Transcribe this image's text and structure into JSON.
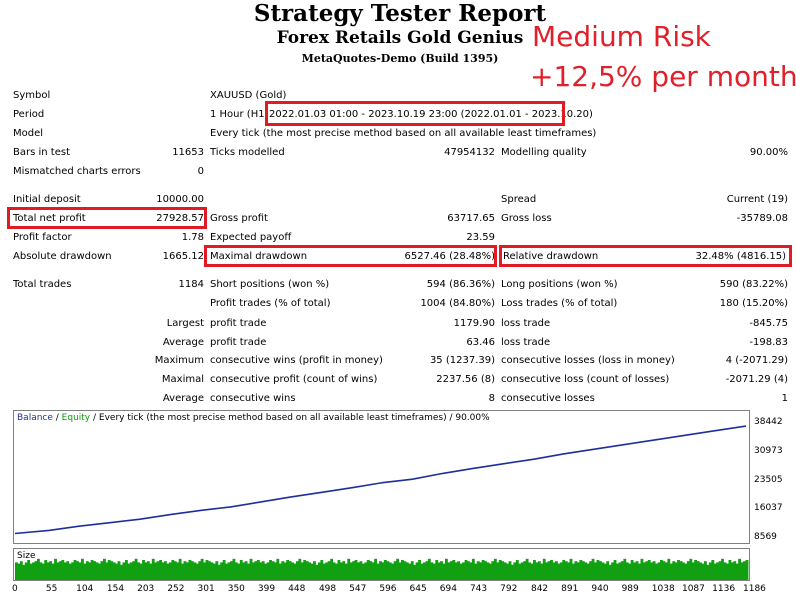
{
  "header": {
    "title": "Strategy Tester Report",
    "subtitle": "Forex Retails Gold Genius",
    "build": "MetaQuotes-Demo (Build 1395)",
    "risk_line1": "Medium Risk",
    "risk_line2": "+12,5% per month"
  },
  "info": {
    "symbol_label": "Symbol",
    "symbol_value": "XAUUSD (Gold)",
    "period_label": "Period",
    "period_prefix": "1 Hour (H1)",
    "period_range": "2022.01.03 01:00 - 2023.10.19 23:00 (2022.01.01 - 2023.10.20)",
    "model_label": "Model",
    "model_value": "Every tick (the most precise method based on all available least timeframes)",
    "bars_label": "Bars in test",
    "bars_value": "11653",
    "ticks_label": "Ticks modelled",
    "ticks_value": "47954132",
    "quality_label": "Modelling quality",
    "quality_value": "90.00%",
    "mismatch_label": "Mismatched charts errors",
    "mismatch_value": "0"
  },
  "stats": {
    "initial_deposit_label": "Initial deposit",
    "initial_deposit": "10000.00",
    "spread_label": "Spread",
    "spread": "Current (19)",
    "net_profit_label": "Total net profit",
    "net_profit": "27928.57",
    "gross_profit_label": "Gross profit",
    "gross_profit": "63717.65",
    "gross_loss_label": "Gross loss",
    "gross_loss": "-35789.08",
    "profit_factor_label": "Profit factor",
    "profit_factor": "1.78",
    "expected_payoff_label": "Expected payoff",
    "expected_payoff": "23.59",
    "abs_dd_label": "Absolute drawdown",
    "abs_dd": "1665.12",
    "max_dd_label": "Maximal drawdown",
    "max_dd": "6527.46 (28.48%)",
    "rel_dd_label": "Relative drawdown",
    "rel_dd": "32.48% (4816.15)",
    "total_trades_label": "Total trades",
    "total_trades": "1184",
    "short_label": "Short positions (won %)",
    "short": "594 (86.36%)",
    "long_label": "Long positions (won %)",
    "long": "590 (83.22%)",
    "profit_trades_label": "Profit trades (% of total)",
    "profit_trades": "1004 (84.80%)",
    "loss_trades_label": "Loss trades (% of total)",
    "loss_trades": "180 (15.20%)",
    "largest_label": "Largest",
    "largest_pt_label": "profit trade",
    "largest_pt": "1179.90",
    "largest_lt_label": "loss trade",
    "largest_lt": "-845.75",
    "average_label": "Average",
    "average_pt_label": "profit trade",
    "average_pt": "63.46",
    "average_lt_label": "loss trade",
    "average_lt": "-198.83",
    "maximum_label": "Maximum",
    "max_cw_label": "consecutive wins (profit in money)",
    "max_cw": "35 (1237.39)",
    "max_cl_label": "consecutive losses (loss in money)",
    "max_cl": "4 (-2071.29)",
    "maximal_label": "Maximal",
    "maxl_cp_label": "consecutive profit (count of wins)",
    "maxl_cp": "2237.56 (8)",
    "maxl_cl_label": "consecutive loss (count of losses)",
    "maxl_cl": "-2071.29 (4)",
    "avg2_label": "Average",
    "avg_cw_label": "consecutive wins",
    "avg_cw": "8",
    "avg_cl_label": "consecutive losses",
    "avg_cl": "1"
  },
  "chart_legend": {
    "balance": "Balance",
    "sep": " / ",
    "equity": "Equity",
    "rest": " / Every tick (the most precise method based on all available least timeframes) / 90.00%"
  },
  "size_label": "Size",
  "colors": {
    "balance": "#1f2f9a",
    "equity": "#0b9b0b",
    "size": "#11a011",
    "highlight": "#e01b24",
    "risk": "#e0202a"
  },
  "chart_data": {
    "type": "line",
    "x": [
      0,
      55,
      104,
      154,
      203,
      252,
      301,
      350,
      399,
      448,
      498,
      547,
      596,
      645,
      694,
      743,
      792,
      842,
      891,
      940,
      989,
      1038,
      1087,
      1136,
      1186
    ],
    "x_ticks": [
      "0",
      "55",
      "104",
      "154",
      "203",
      "252",
      "301",
      "350",
      "399",
      "448",
      "498",
      "547",
      "596",
      "645",
      "694",
      "743",
      "792",
      "842",
      "891",
      "940",
      "989",
      "1038",
      "1087",
      "1136",
      "1186"
    ],
    "y_ticks": [
      "38442",
      "30973",
      "23505",
      "16037",
      "8569"
    ],
    "ylim": [
      8569,
      38442
    ],
    "series": [
      {
        "name": "Balance",
        "values": [
          10000,
          10800,
          11900,
          12800,
          13700,
          14900,
          16000,
          16900,
          18200,
          19500,
          20700,
          21900,
          23200,
          24100,
          25600,
          26900,
          28100,
          29300,
          30700,
          31900,
          33100,
          34300,
          35500,
          36700,
          37900
        ]
      }
    ],
    "size_series": {
      "name": "Size",
      "values": [
        3,
        2,
        4,
        1,
        3,
        5,
        2,
        3,
        4,
        6,
        3,
        2,
        5,
        3,
        4,
        2,
        6,
        3,
        4,
        5,
        3,
        4,
        2,
        3,
        5,
        4,
        3,
        6,
        2,
        4,
        3,
        5,
        4,
        3,
        2,
        4,
        6,
        3,
        5,
        4
      ]
    }
  }
}
